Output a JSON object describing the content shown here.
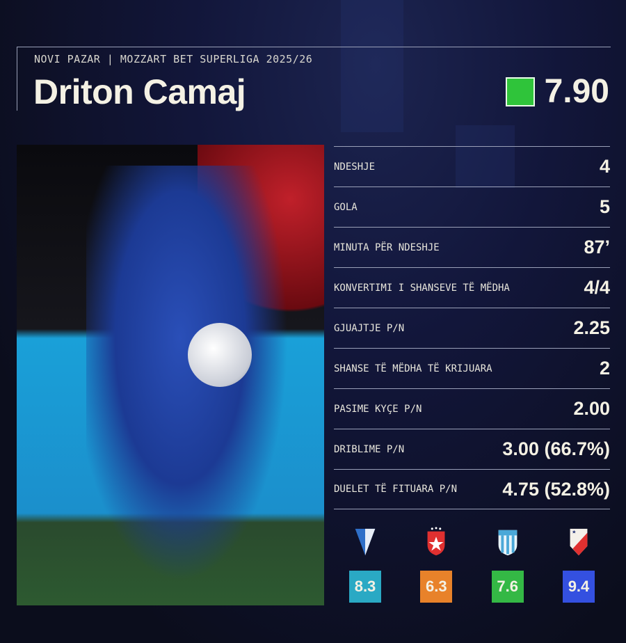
{
  "header": {
    "subtitle": "NOVI PAZAR | MOZZART BET SUPERLIGA 2025/26",
    "player_name": "Driton Camaj",
    "rating": "7.90",
    "rating_color": "#2fc43a"
  },
  "stats": [
    {
      "label": "NDESHJE",
      "value": "4"
    },
    {
      "label": "GOLA",
      "value": "5"
    },
    {
      "label": "MINUTA PËR NDESHJE",
      "value": "87’"
    },
    {
      "label": "KONVERTIMI I SHANSEVE TË MËDHA",
      "value": "4/4"
    },
    {
      "label": "GJUAJTJE P/N",
      "value": "2.25"
    },
    {
      "label": "SHANSE TË MËDHA TË KRIJUARA",
      "value": "2"
    },
    {
      "label": "PASIME KYÇE P/N",
      "value": "2.00"
    },
    {
      "label": "DRIBLIME P/N",
      "value": "3.00 (66.7%)"
    },
    {
      "label": "DUELET TË FITUARA P/N",
      "value": "4.75 (52.8%)"
    }
  ],
  "matches": [
    {
      "crest": "blue-white-pennant-crest-icon",
      "rating": "8.3",
      "color": "#2aa9c4"
    },
    {
      "crest": "red-star-crest-icon",
      "rating": "6.3",
      "color": "#e8822a"
    },
    {
      "crest": "sky-blue-striped-crest-icon",
      "rating": "7.6",
      "color": "#34b845"
    },
    {
      "crest": "red-white-star-crest-icon",
      "rating": "9.4",
      "color": "#3450e0"
    }
  ]
}
